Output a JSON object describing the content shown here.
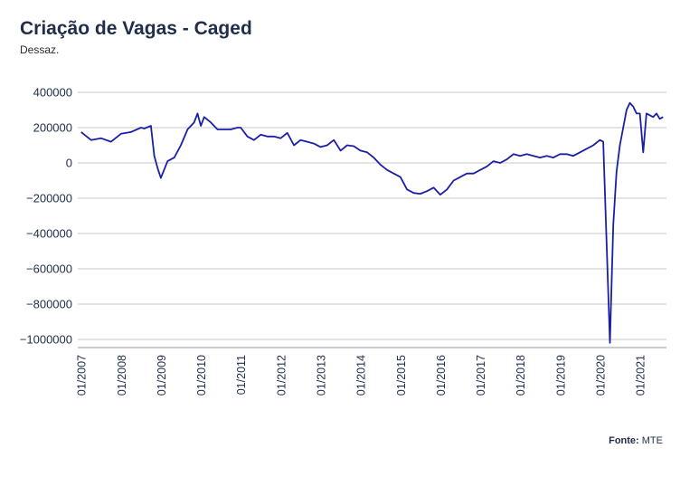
{
  "chart_data": {
    "type": "line",
    "title": "Criação de Vagas - Caged",
    "subtitle": "Dessaz.",
    "xlabel": "",
    "ylabel": "",
    "ylim": [
      -1000000,
      400000
    ],
    "yticks": [
      400000,
      200000,
      0,
      -200000,
      -400000,
      -600000,
      -800000,
      -1000000
    ],
    "ytick_labels": [
      "400000",
      "200000",
      "0",
      "−200000",
      "−400000",
      "−600000",
      "−800000",
      "−1000000"
    ],
    "xlim": [
      "2006-12",
      "2021-09"
    ],
    "xticks": [
      "2007-01",
      "2008-01",
      "2009-01",
      "2010-01",
      "2011-01",
      "2012-01",
      "2013-01",
      "2014-01",
      "2015-01",
      "2016-01",
      "2017-01",
      "2018-01",
      "2019-01",
      "2020-01",
      "2021-01"
    ],
    "xtick_labels": [
      "01/2007",
      "01/2008",
      "01/2009",
      "01/2010",
      "01/2011",
      "01/2012",
      "01/2013",
      "01/2014",
      "01/2015",
      "01/2016",
      "01/2017",
      "01/2018",
      "01/2019",
      "01/2020",
      "01/2021"
    ],
    "grid": true,
    "line_color": "#1a1fa6",
    "series": [
      {
        "x": [
          "2007-01",
          "2007-04",
          "2007-07",
          "2007-10",
          "2008-01",
          "2008-04",
          "2008-07",
          "2008-08",
          "2008-10",
          "2008-11",
          "2008-12",
          "2009-01",
          "2009-03",
          "2009-05",
          "2009-07",
          "2009-09",
          "2009-11",
          "2009-12",
          "2010-01",
          "2010-02",
          "2010-04",
          "2010-06",
          "2010-08",
          "2010-10",
          "2010-12",
          "2011-01",
          "2011-03",
          "2011-05",
          "2011-07",
          "2011-09",
          "2011-11",
          "2012-01",
          "2012-03",
          "2012-05",
          "2012-07",
          "2012-09",
          "2012-11",
          "2013-01",
          "2013-03",
          "2013-05",
          "2013-07",
          "2013-09",
          "2013-11",
          "2014-01",
          "2014-03",
          "2014-05",
          "2014-07",
          "2014-09",
          "2014-11",
          "2015-01",
          "2015-03",
          "2015-05",
          "2015-07",
          "2015-09",
          "2015-11",
          "2016-01",
          "2016-03",
          "2016-05",
          "2016-07",
          "2016-09",
          "2016-11",
          "2017-01",
          "2017-03",
          "2017-05",
          "2017-07",
          "2017-09",
          "2017-11",
          "2018-01",
          "2018-03",
          "2018-05",
          "2018-07",
          "2018-09",
          "2018-11",
          "2019-01",
          "2019-03",
          "2019-05",
          "2019-07",
          "2019-09",
          "2019-11",
          "2020-01",
          "2020-02",
          "2020-03",
          "2020-04",
          "2020-05",
          "2020-06",
          "2020-07",
          "2020-08",
          "2020-09",
          "2020-10",
          "2020-11",
          "2020-12",
          "2021-01",
          "2021-02",
          "2021-03",
          "2021-04",
          "2021-05",
          "2021-06",
          "2021-07",
          "2021-08"
        ],
        "values": [
          175000,
          130000,
          140000,
          120000,
          165000,
          175000,
          200000,
          195000,
          210000,
          40000,
          -30000,
          -85000,
          10000,
          30000,
          100000,
          190000,
          230000,
          280000,
          210000,
          260000,
          230000,
          190000,
          190000,
          190000,
          200000,
          200000,
          150000,
          130000,
          160000,
          150000,
          150000,
          140000,
          170000,
          100000,
          130000,
          120000,
          110000,
          90000,
          100000,
          130000,
          70000,
          100000,
          95000,
          70000,
          60000,
          30000,
          -10000,
          -40000,
          -60000,
          -80000,
          -150000,
          -170000,
          -175000,
          -160000,
          -140000,
          -180000,
          -150000,
          -100000,
          -80000,
          -60000,
          -60000,
          -40000,
          -20000,
          10000,
          0,
          20000,
          50000,
          40000,
          50000,
          40000,
          30000,
          40000,
          30000,
          50000,
          50000,
          40000,
          60000,
          80000,
          100000,
          130000,
          120000,
          -450000,
          -1020000,
          -350000,
          -50000,
          100000,
          200000,
          300000,
          340000,
          320000,
          280000,
          280000,
          60000,
          280000,
          270000,
          260000,
          280000,
          250000,
          260000
        ]
      }
    ]
  },
  "source": {
    "label": "Fonte:",
    "value": "MTE"
  }
}
